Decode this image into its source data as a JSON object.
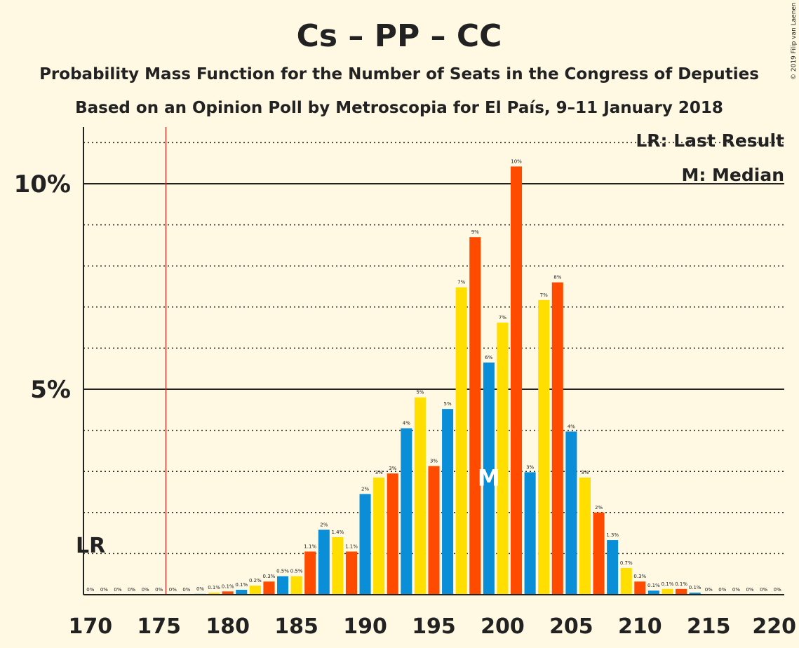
{
  "chart_data": {
    "type": "bar",
    "title": "Cs – PP – CC",
    "subtitle1": "Probability Mass Function for the Number of Seats in the Congress of Deputies",
    "subtitle2": "Based on an Opinion Poll by Metroscopia for El País, 9–11 January 2018",
    "copyright": "© 2019 Filip van Laenen",
    "legend": {
      "lr": "LR: Last Result",
      "m": "M: Median",
      "placement": "top-right"
    },
    "lr_label": "LR",
    "median_marker": "M",
    "last_result_seat": 176,
    "median_seat": 199,
    "xlim": [
      170,
      220
    ],
    "ylim": [
      0,
      11.3
    ],
    "x_ticks": [
      "170",
      "175",
      "180",
      "185",
      "190",
      "195",
      "200",
      "205",
      "210",
      "215",
      "220"
    ],
    "y_ticks": [
      {
        "value": 5,
        "label": "5%"
      },
      {
        "value": 10,
        "label": "10%"
      }
    ],
    "colors": {
      "blue": "#0B8ED8",
      "yellow": "#FFDE00",
      "orange": "#FF4B00",
      "lr_line": "#C0392B"
    },
    "bars": [
      {
        "seat": 170,
        "value": 0,
        "label": "0%",
        "color": "yellow"
      },
      {
        "seat": 171,
        "value": 0,
        "label": "0%",
        "color": "orange"
      },
      {
        "seat": 172,
        "value": 0,
        "label": "0%",
        "color": "blue"
      },
      {
        "seat": 173,
        "value": 0,
        "label": "0%",
        "color": "yellow"
      },
      {
        "seat": 174,
        "value": 0,
        "label": "0%",
        "color": "orange"
      },
      {
        "seat": 175,
        "value": 0,
        "label": "0%",
        "color": "blue"
      },
      {
        "seat": 176,
        "value": 0,
        "label": "0%",
        "color": "yellow"
      },
      {
        "seat": 177,
        "value": 0,
        "label": "0%",
        "color": "orange"
      },
      {
        "seat": 178,
        "value": 0.02,
        "label": "0%",
        "color": "blue"
      },
      {
        "seat": 179,
        "value": 0.05,
        "label": "0.1%",
        "color": "yellow"
      },
      {
        "seat": 180,
        "value": 0.08,
        "label": "0.1%",
        "color": "orange"
      },
      {
        "seat": 181,
        "value": 0.12,
        "label": "0.1%",
        "color": "blue"
      },
      {
        "seat": 182,
        "value": 0.22,
        "label": "0.2%",
        "color": "yellow"
      },
      {
        "seat": 183,
        "value": 0.32,
        "label": "0.3%",
        "color": "orange"
      },
      {
        "seat": 184,
        "value": 0.45,
        "label": "0.5%",
        "color": "blue"
      },
      {
        "seat": 185,
        "value": 0.45,
        "label": "0.5%",
        "color": "yellow"
      },
      {
        "seat": 186,
        "value": 1.05,
        "label": "1.1%",
        "color": "orange"
      },
      {
        "seat": 187,
        "value": 1.58,
        "label": "2%",
        "color": "blue"
      },
      {
        "seat": 188,
        "value": 1.4,
        "label": "1.4%",
        "color": "yellow"
      },
      {
        "seat": 189,
        "value": 1.05,
        "label": "1.1%",
        "color": "orange"
      },
      {
        "seat": 190,
        "value": 2.45,
        "label": "2%",
        "color": "blue"
      },
      {
        "seat": 191,
        "value": 2.85,
        "label": "3%",
        "color": "yellow"
      },
      {
        "seat": 192,
        "value": 2.95,
        "label": "3%",
        "color": "orange"
      },
      {
        "seat": 193,
        "value": 4.05,
        "label": "4%",
        "color": "blue"
      },
      {
        "seat": 194,
        "value": 4.8,
        "label": "5%",
        "color": "yellow"
      },
      {
        "seat": 195,
        "value": 3.13,
        "label": "3%",
        "color": "orange"
      },
      {
        "seat": 196,
        "value": 4.52,
        "label": "5%",
        "color": "blue"
      },
      {
        "seat": 197,
        "value": 7.48,
        "label": "7%",
        "color": "yellow"
      },
      {
        "seat": 198,
        "value": 8.7,
        "label": "9%",
        "color": "orange"
      },
      {
        "seat": 199,
        "value": 5.65,
        "label": "6%",
        "color": "blue"
      },
      {
        "seat": 200,
        "value": 6.62,
        "label": "7%",
        "color": "yellow"
      },
      {
        "seat": 201,
        "value": 10.42,
        "label": "10%",
        "color": "orange"
      },
      {
        "seat": 202,
        "value": 2.98,
        "label": "3%",
        "color": "blue"
      },
      {
        "seat": 203,
        "value": 7.17,
        "label": "7%",
        "color": "yellow"
      },
      {
        "seat": 204,
        "value": 7.6,
        "label": "8%",
        "color": "orange"
      },
      {
        "seat": 205,
        "value": 3.97,
        "label": "4%",
        "color": "blue"
      },
      {
        "seat": 206,
        "value": 2.85,
        "label": "3%",
        "color": "yellow"
      },
      {
        "seat": 207,
        "value": 2.0,
        "label": "2%",
        "color": "orange"
      },
      {
        "seat": 208,
        "value": 1.33,
        "label": "1.3%",
        "color": "blue"
      },
      {
        "seat": 209,
        "value": 0.65,
        "label": "0.7%",
        "color": "yellow"
      },
      {
        "seat": 210,
        "value": 0.32,
        "label": "0.3%",
        "color": "orange"
      },
      {
        "seat": 211,
        "value": 0.1,
        "label": "0.1%",
        "color": "blue"
      },
      {
        "seat": 212,
        "value": 0.14,
        "label": "0.1%",
        "color": "yellow"
      },
      {
        "seat": 213,
        "value": 0.14,
        "label": "0.1%",
        "color": "orange"
      },
      {
        "seat": 214,
        "value": 0.05,
        "label": "0.1%",
        "color": "blue"
      },
      {
        "seat": 215,
        "value": 0,
        "label": "0%",
        "color": "yellow"
      },
      {
        "seat": 216,
        "value": 0,
        "label": "0%",
        "color": "orange"
      },
      {
        "seat": 217,
        "value": 0,
        "label": "0%",
        "color": "blue"
      },
      {
        "seat": 218,
        "value": 0,
        "label": "0%",
        "color": "yellow"
      },
      {
        "seat": 219,
        "value": 0,
        "label": "0%",
        "color": "orange"
      },
      {
        "seat": 220,
        "value": 0,
        "label": "0%",
        "color": "blue"
      }
    ]
  }
}
